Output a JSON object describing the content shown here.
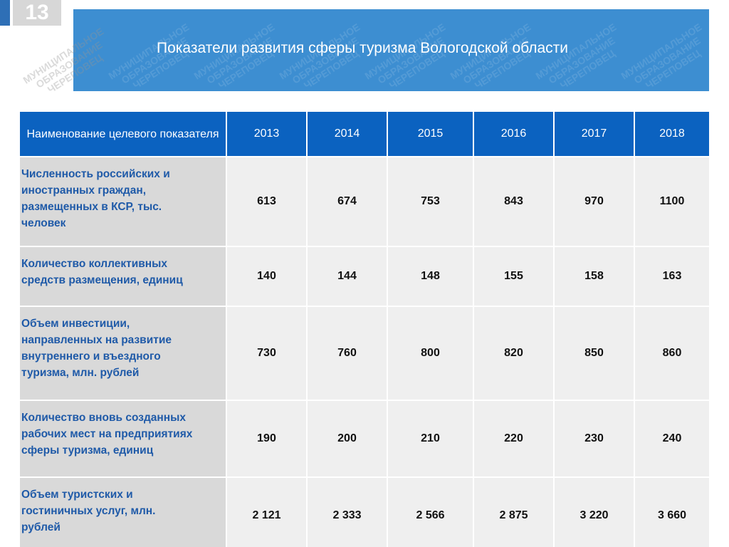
{
  "page": {
    "number": "13",
    "title": "Показатели развития сферы туризма Вологодской области"
  },
  "watermark": {
    "line1": "МУНИЦИПАЛЬНОЕ",
    "line2": "ОБРАЗОВАНИЕ",
    "line3": "ЧЕРЕПОВЕЦ"
  },
  "table": {
    "header_label": "Наименование целевого показателя",
    "years": [
      "2013",
      "2014",
      "2015",
      "2016",
      "2017",
      "2018"
    ],
    "rows": [
      {
        "label_lines": [
          "Численность российских и",
          "иностранных граждан,",
          "размещенных в КСР, тыс.",
          "человек"
        ],
        "values": [
          "613",
          "674",
          "753",
          "843",
          "970",
          "1100"
        ]
      },
      {
        "label_lines": [
          "Количество коллективных",
          "средств размещения, единиц"
        ],
        "values": [
          "140",
          "144",
          "148",
          "155",
          "158",
          "163"
        ]
      },
      {
        "label_lines": [
          "Объем инвестиции,",
          "направленных на развитие",
          "внутреннего и въездного",
          "туризма, млн. рублей"
        ],
        "values": [
          "730",
          "760",
          "800",
          "820",
          "850",
          "860"
        ]
      },
      {
        "label_lines": [
          "Количество вновь созданных",
          "рабочих мест на предприятиях",
          "сферы туризма, единиц"
        ],
        "values": [
          "190",
          "200",
          "210",
          "220",
          "230",
          "240"
        ]
      },
      {
        "label_lines": [
          "Объем туристских и",
          "гостиничных услуг, млн.",
          "рублей"
        ],
        "values": [
          "2 121",
          "2 333",
          "2 566",
          "2 875",
          "3 220",
          "3 660"
        ]
      }
    ]
  }
}
